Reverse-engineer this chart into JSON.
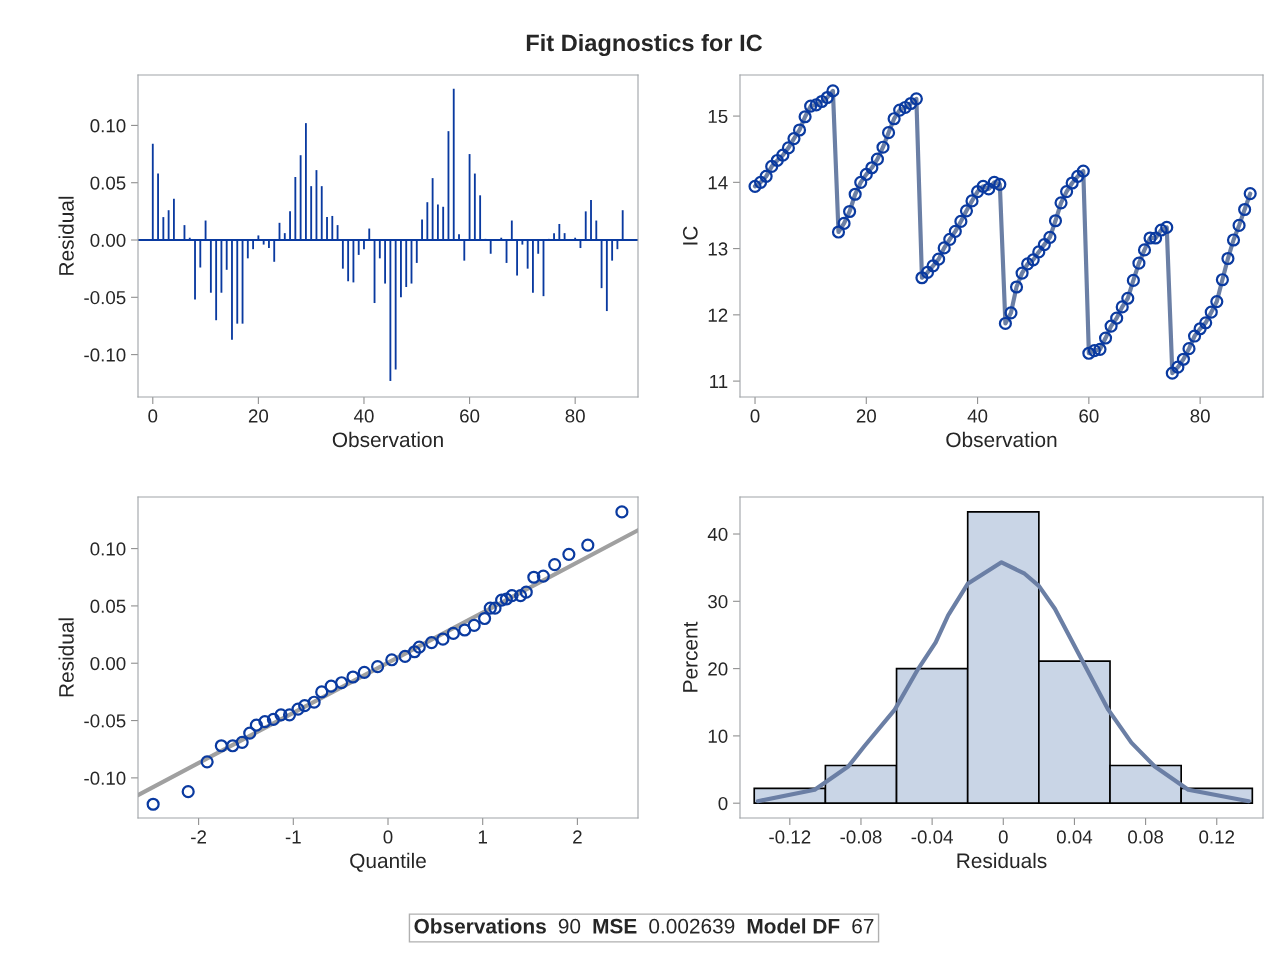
{
  "chart_data": [
    {
      "type": "bar",
      "xlabel": "Observation",
      "ylabel": "Residual",
      "color": "#0a3aa0",
      "x": [
        0,
        1,
        2,
        3,
        4,
        5,
        6,
        7,
        8,
        9,
        10,
        11,
        12,
        13,
        14,
        15,
        16,
        17,
        18,
        19,
        20,
        21,
        22,
        23,
        24,
        25,
        26,
        27,
        28,
        29,
        30,
        31,
        32,
        33,
        34,
        35,
        36,
        37,
        38,
        39,
        40,
        41,
        42,
        43,
        44,
        45,
        46,
        47,
        48,
        49,
        50,
        51,
        52,
        53,
        54,
        55,
        56,
        57,
        58,
        59,
        60,
        61,
        62,
        63,
        64,
        65,
        66,
        67,
        68,
        69,
        70,
        71,
        72,
        73,
        74,
        75,
        76,
        77,
        78,
        79,
        80,
        81,
        82,
        83,
        84,
        85,
        86,
        87,
        88,
        89
      ],
      "values": [
        0.084,
        0.058,
        0.02,
        0.026,
        0.036,
        0.0,
        0.013,
        0.002,
        -0.052,
        -0.024,
        0.017,
        -0.046,
        -0.07,
        -0.046,
        -0.026,
        -0.087,
        -0.073,
        -0.073,
        -0.016,
        -0.008,
        0.004,
        -0.004,
        -0.007,
        -0.019,
        0.015,
        0.006,
        0.025,
        0.055,
        0.074,
        0.102,
        0.047,
        0.061,
        0.047,
        0.02,
        0.021,
        0.013,
        -0.025,
        -0.036,
        -0.037,
        -0.013,
        -0.008,
        0.01,
        -0.055,
        -0.016,
        -0.038,
        -0.123,
        -0.113,
        -0.05,
        -0.041,
        -0.038,
        -0.02,
        0.018,
        0.033,
        0.054,
        0.031,
        0.029,
        0.095,
        0.132,
        0.005,
        -0.018,
        0.075,
        0.058,
        0.039,
        0.001,
        -0.012,
        0.0,
        0.002,
        -0.02,
        0.017,
        -0.031,
        -0.004,
        -0.025,
        -0.046,
        -0.012,
        -0.049,
        0.001,
        0.006,
        0.014,
        0.006,
        null,
        0.002,
        -0.007,
        0.025,
        0.035,
        0.017,
        -0.042,
        -0.062,
        -0.018,
        -0.008,
        0.026
      ],
      "xlim": [
        -2.8,
        91.9
      ],
      "xticks": [
        0,
        20,
        40,
        60,
        80
      ],
      "ylim": [
        -0.137,
        0.144
      ],
      "yticks": [
        {
          "value": -0.1,
          "label": "-0.10"
        },
        {
          "value": -0.05,
          "label": "-0.05"
        },
        {
          "value": 0,
          "label": "0.00"
        },
        {
          "value": 0.05,
          "label": "0.05"
        },
        {
          "value": 0.1,
          "label": "0.10"
        }
      ],
      "ref_lines": [
        {
          "axis": "y",
          "value": 0,
          "color": "#0a3aa0"
        }
      ]
    },
    {
      "type": "line",
      "xlabel": "Observation",
      "ylabel": "IC",
      "x": [
        0,
        1,
        2,
        3,
        4,
        5,
        6,
        7,
        8,
        9,
        10,
        11,
        12,
        13,
        14,
        15,
        16,
        17,
        18,
        19,
        20,
        21,
        22,
        23,
        24,
        25,
        26,
        27,
        28,
        29,
        30,
        31,
        32,
        33,
        34,
        35,
        36,
        37,
        38,
        39,
        40,
        41,
        42,
        43,
        44,
        45,
        46,
        47,
        48,
        49,
        50,
        51,
        52,
        53,
        54,
        55,
        56,
        57,
        58,
        59,
        60,
        61,
        62,
        63,
        64,
        65,
        66,
        67,
        68,
        69,
        70,
        71,
        72,
        73,
        74,
        75,
        76,
        77,
        78,
        79,
        80,
        81,
        82,
        83,
        84,
        85,
        86,
        87,
        88,
        89
      ],
      "series": [
        {
          "type": "line",
          "color": "#6b7fa5",
          "values": [
            13.94,
            14.0,
            14.09,
            14.24,
            14.33,
            14.41,
            14.52,
            14.66,
            14.79,
            14.99,
            15.15,
            15.17,
            15.22,
            15.28,
            15.38,
            13.25,
            13.38,
            13.56,
            13.82,
            14.0,
            14.12,
            14.22,
            14.35,
            14.53,
            14.75,
            14.96,
            15.09,
            15.13,
            15.19,
            15.26,
            12.56,
            12.64,
            12.74,
            12.84,
            13.01,
            13.14,
            13.26,
            13.41,
            13.57,
            13.72,
            13.86,
            13.94,
            13.9,
            14.0,
            13.97,
            11.87,
            12.03,
            12.42,
            12.63,
            12.77,
            12.83,
            12.95,
            13.06,
            13.17,
            13.42,
            13.69,
            13.86,
            13.99,
            14.09,
            14.17,
            11.42,
            11.46,
            11.48,
            11.65,
            11.83,
            11.95,
            12.12,
            12.25,
            12.52,
            12.78,
            12.98,
            13.16,
            13.16,
            13.28,
            13.32,
            11.12,
            11.21,
            11.33,
            11.49,
            11.68,
            11.79,
            11.88,
            12.04,
            12.2,
            12.53,
            12.85,
            13.13,
            13.35,
            13.59,
            13.83
          ]
        },
        {
          "type": "scatter",
          "marker": "circle",
          "color": "#0a3aa0",
          "values": [
            13.94,
            14.0,
            14.09,
            14.24,
            14.33,
            14.41,
            14.52,
            14.66,
            14.79,
            14.99,
            15.15,
            15.17,
            15.22,
            15.28,
            15.38,
            13.25,
            13.38,
            13.56,
            13.82,
            14.0,
            14.12,
            14.22,
            14.35,
            14.53,
            14.75,
            14.96,
            15.09,
            15.13,
            15.19,
            15.26,
            12.56,
            12.64,
            12.74,
            12.84,
            13.01,
            13.14,
            13.26,
            13.41,
            13.57,
            13.72,
            13.86,
            13.94,
            13.9,
            14.0,
            13.97,
            11.87,
            12.03,
            12.42,
            12.63,
            12.77,
            12.83,
            12.95,
            13.06,
            13.17,
            13.42,
            13.69,
            13.86,
            13.99,
            14.09,
            14.17,
            11.42,
            11.46,
            11.48,
            11.65,
            11.83,
            11.95,
            12.12,
            12.25,
            12.52,
            12.78,
            12.98,
            13.16,
            13.16,
            13.28,
            13.32,
            11.12,
            11.21,
            11.33,
            11.49,
            11.68,
            11.79,
            11.88,
            12.04,
            12.2,
            12.53,
            12.85,
            13.13,
            13.35,
            13.59,
            13.83
          ]
        }
      ],
      "xlim": [
        -2.7,
        91.3
      ],
      "xticks": [
        0,
        20,
        40,
        60,
        80
      ],
      "ylim": [
        10.76,
        15.62
      ],
      "yticks": [
        11,
        12,
        13,
        14,
        15
      ]
    },
    {
      "type": "scatter",
      "xlabel": "Quantile",
      "ylabel": "Residual",
      "series": [
        {
          "type": "line",
          "color": "#a0a0a0",
          "x": [
            -2.64,
            2.64
          ],
          "values": [
            -0.115,
            0.116
          ]
        },
        {
          "type": "scatter",
          "marker": "circle",
          "color": "#0a3aa0",
          "x": [
            -2.48,
            -2.11,
            -1.91,
            -1.76,
            -1.64,
            -1.54,
            -1.46,
            -1.39,
            -1.3,
            -1.21,
            -1.13,
            -1.04,
            -0.95,
            -0.88,
            -0.78,
            -0.7,
            -0.6,
            -0.49,
            -0.37,
            -0.25,
            -0.11,
            0.04,
            0.18,
            0.28,
            0.33,
            0.46,
            0.58,
            0.69,
            0.81,
            0.91,
            1.02,
            1.08,
            1.13,
            1.2,
            1.25,
            1.31,
            1.4,
            1.46,
            1.54,
            1.64,
            1.76,
            1.91,
            2.11,
            2.47
          ],
          "values": [
            -0.123,
            -0.112,
            -0.086,
            -0.072,
            -0.072,
            -0.069,
            -0.061,
            -0.054,
            -0.051,
            -0.049,
            -0.045,
            -0.045,
            -0.04,
            -0.037,
            -0.034,
            -0.025,
            -0.02,
            -0.017,
            -0.012,
            -0.008,
            -0.003,
            0.003,
            0.006,
            0.01,
            0.014,
            0.018,
            0.021,
            0.026,
            0.029,
            0.033,
            0.039,
            0.048,
            0.048,
            0.055,
            0.056,
            0.059,
            0.059,
            0.062,
            0.075,
            0.076,
            0.086,
            0.095,
            0.103,
            0.132
          ]
        }
      ],
      "xlim": [
        -2.64,
        2.64
      ],
      "xticks": [
        -2,
        -1,
        0,
        1,
        2
      ],
      "ylim": [
        -0.135,
        0.145
      ],
      "yticks": [
        {
          "value": -0.1,
          "label": "-0.10"
        },
        {
          "value": -0.05,
          "label": "-0.05"
        },
        {
          "value": 0,
          "label": "0.00"
        },
        {
          "value": 0.05,
          "label": "0.05"
        },
        {
          "value": 0.1,
          "label": "0.10"
        }
      ]
    },
    {
      "type": "histogram",
      "xlabel": "Residuals",
      "ylabel": "Percent",
      "bins": [
        -0.14,
        -0.1,
        -0.06,
        -0.02,
        0.02,
        0.06,
        0.1,
        0.14
      ],
      "series": [
        {
          "type": "histogram",
          "color": "#c9d5e6",
          "values": [
            2.2,
            5.6,
            20.0,
            43.3,
            21.1,
            5.6,
            2.2
          ]
        },
        {
          "type": "line",
          "color": "#6b7fa5",
          "x": [
            -0.138,
            -0.106,
            -0.087,
            -0.078,
            -0.061,
            -0.048,
            -0.038,
            -0.031,
            -0.02,
            -0.001,
            0.012,
            0.02,
            0.029,
            0.044,
            0.059,
            0.072,
            0.085,
            0.104,
            0.138
          ],
          "values": [
            0.3,
            2.0,
            5.5,
            8.5,
            13.9,
            19.9,
            23.9,
            27.9,
            32.6,
            35.8,
            34.1,
            32.3,
            28.9,
            21.4,
            13.9,
            9.0,
            5.5,
            2.0,
            0.3
          ]
        }
      ],
      "xlim": [
        -0.148,
        0.146
      ],
      "xticks": [
        -0.12,
        -0.08,
        -0.04,
        0,
        0.04,
        0.08,
        0.12
      ],
      "ylim": [
        -2.2,
        45.5
      ],
      "yticks": [
        0,
        10,
        20,
        30,
        40
      ]
    },
    {
      "type": "other",
      "title": "Fit Diagnostics for IC",
      "annotations": [
        "Observations",
        "90",
        "MSE",
        "0.002639",
        "Model DF",
        "67"
      ]
    }
  ]
}
